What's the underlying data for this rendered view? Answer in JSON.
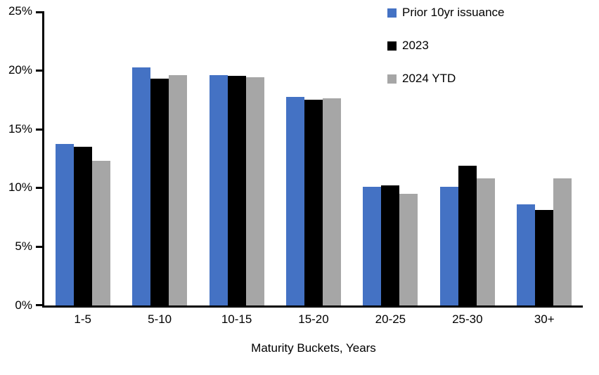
{
  "chart_data": {
    "type": "bar",
    "title": "",
    "xlabel": "Maturity Buckets, Years",
    "ylabel": "",
    "ylim": [
      0,
      25
    ],
    "ytick_step": 5,
    "yticks": [
      0,
      5,
      10,
      15,
      20,
      25
    ],
    "ytick_labels": [
      "0%",
      "5%",
      "10%",
      "15%",
      "20%",
      "25%"
    ],
    "grid": false,
    "legend_position": "top-right",
    "categories": [
      "1-5",
      "5-10",
      "10-15",
      "15-20",
      "20-25",
      "25-30",
      "30+"
    ],
    "series": [
      {
        "name": "Prior 10yr issuance",
        "color": "#4472C4",
        "values": [
          13.7,
          20.2,
          19.6,
          17.7,
          10.1,
          10.1,
          8.6
        ]
      },
      {
        "name": "2023",
        "color": "#000000",
        "values": [
          13.5,
          19.3,
          19.5,
          17.5,
          10.2,
          11.9,
          8.1
        ]
      },
      {
        "name": "2024 YTD",
        "color": "#A6A6A6",
        "values": [
          12.3,
          19.6,
          19.4,
          17.6,
          9.5,
          10.8,
          10.8
        ]
      }
    ]
  }
}
